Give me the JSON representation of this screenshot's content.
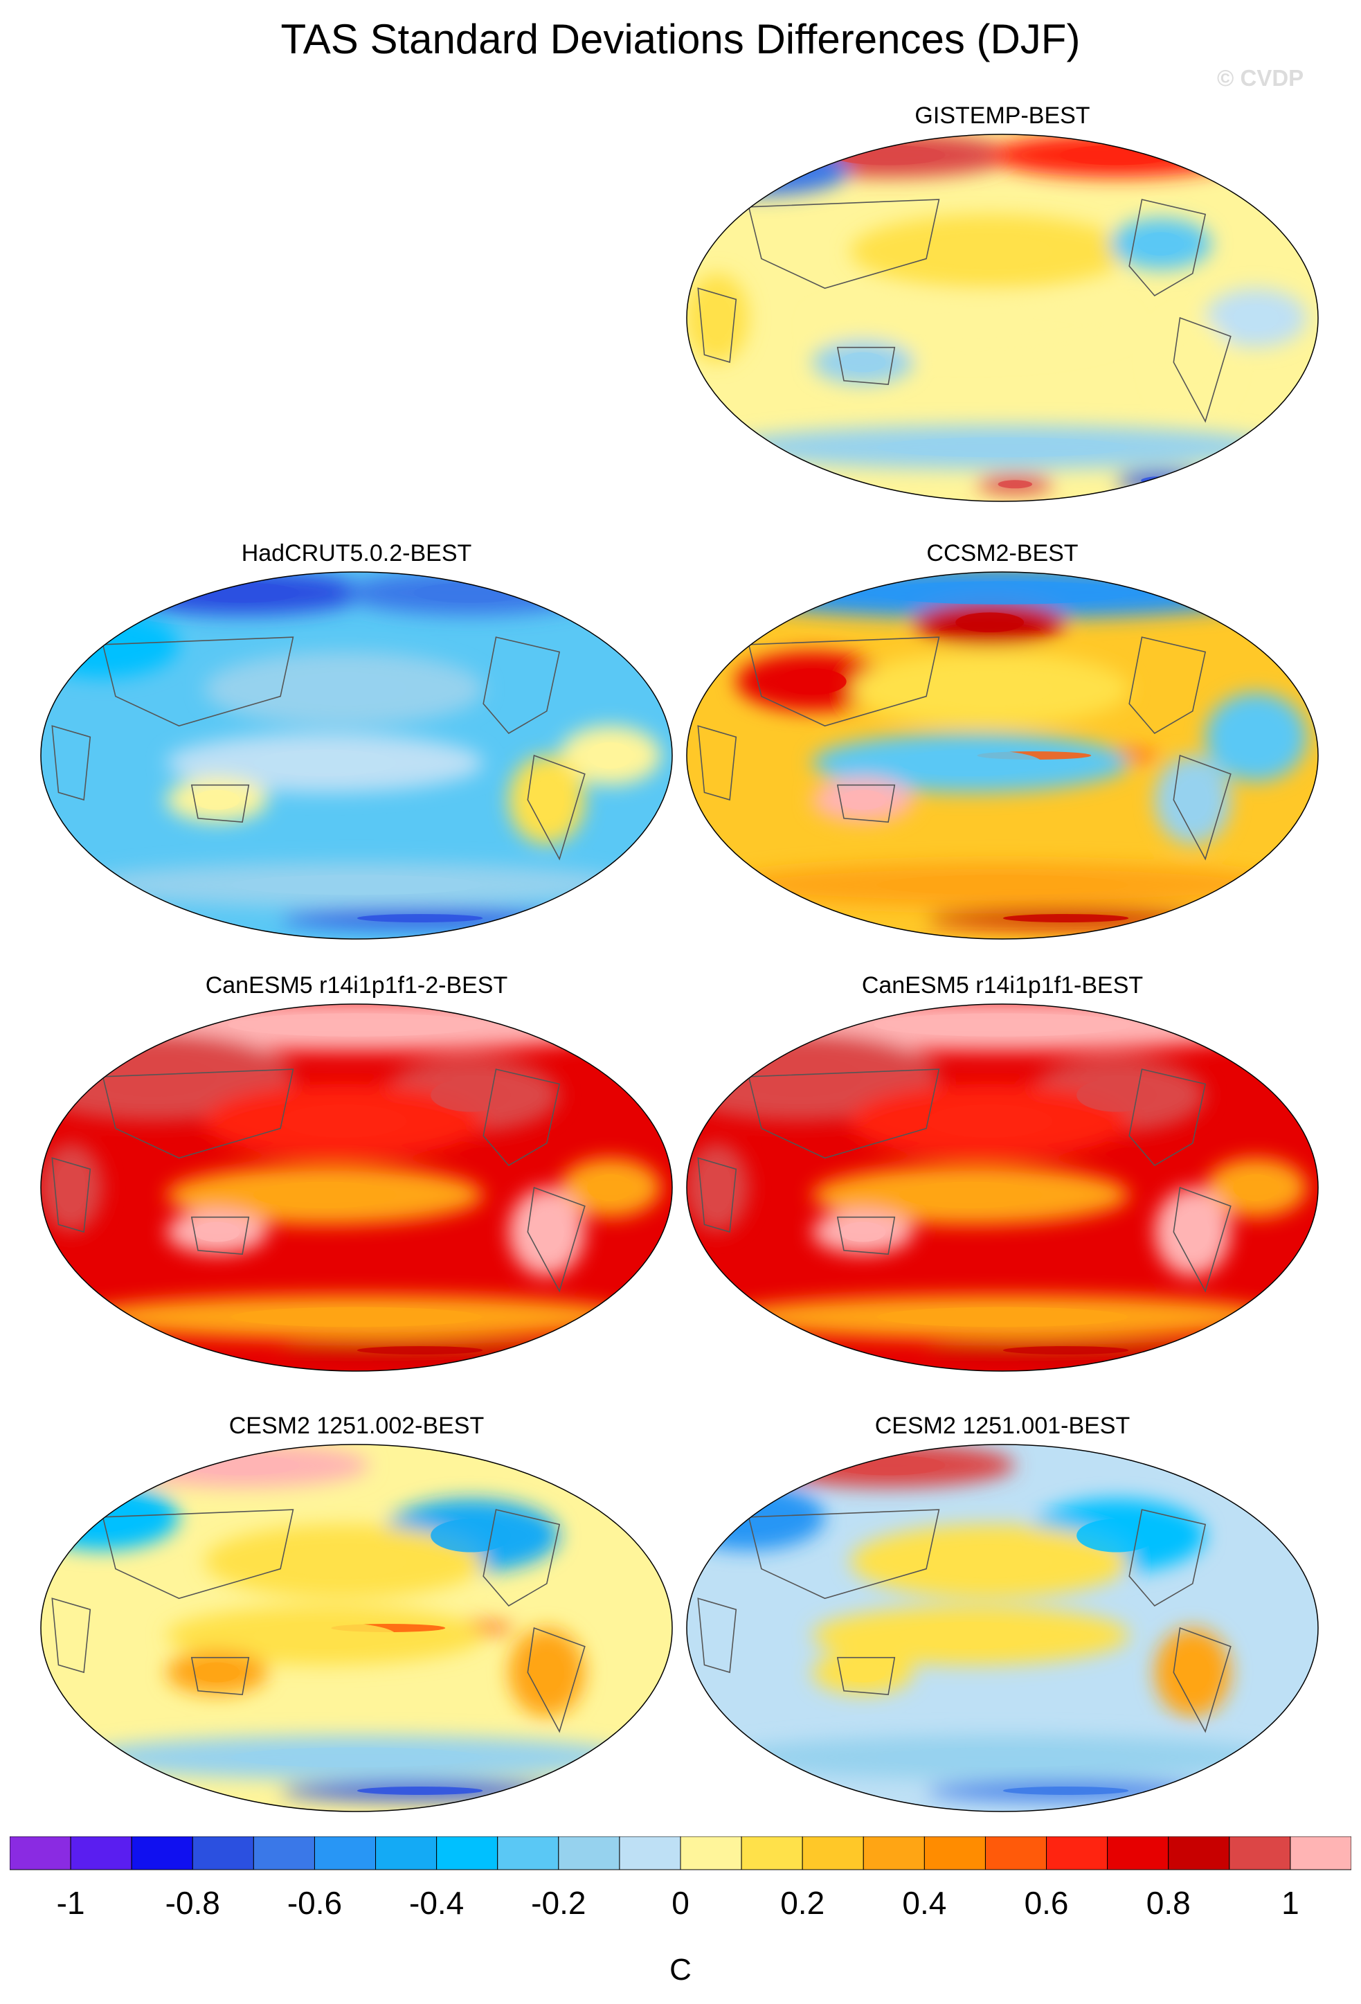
{
  "title": "TAS Standard Deviations Differences (DJF)",
  "watermark": "© CVDP",
  "colors": {
    "palette": [
      "#8a2be2",
      "#5a1ef0",
      "#1010f0",
      "#2b50e0",
      "#3a78e8",
      "#2896f5",
      "#14aaf5",
      "#00c0ff",
      "#5ac8f5",
      "#96d2ee",
      "#bee0f5",
      "#fff59a",
      "#ffe14a",
      "#ffc828",
      "#ffa514",
      "#ff8c00",
      "#ff5a0a",
      "#ff2410",
      "#e60000",
      "#c80000",
      "#dc4646",
      "#ffb4b4"
    ],
    "land_outline": "#555555"
  },
  "chart_data": [
    {
      "type": "heatmap",
      "title": "GISTEMP-BEST",
      "projection": "global equal-area (Winkel/Robinson-like), Pacific-centered",
      "season": "DJF",
      "units": "C",
      "value_range": [
        -1.0,
        1.0
      ],
      "regional_values": [
        {
          "region": "Arctic Siberia",
          "value": 0.9
        },
        {
          "region": "Arctic North America",
          "value": 0.6
        },
        {
          "region": "Scandinavia/Europe high latitudes",
          "value": -0.7
        },
        {
          "region": "North Pacific",
          "value": 0.1
        },
        {
          "region": "Eastern North America",
          "value": -0.3
        },
        {
          "region": "Tropical Pacific",
          "value": 0.05
        },
        {
          "region": "Tropical Atlantic",
          "value": -0.1
        },
        {
          "region": "Australia",
          "value": -0.2
        },
        {
          "region": "Africa",
          "value": 0.1
        },
        {
          "region": "South America",
          "value": 0.05
        },
        {
          "region": "Southern Ocean",
          "value": -0.15
        },
        {
          "region": "Antarctica Ross sector",
          "value": 0.9
        },
        {
          "region": "Antarctica Weddell sector",
          "value": -0.8
        }
      ]
    },
    {
      "type": "heatmap",
      "title": "HadCRUT5.0.2-BEST",
      "projection": "global equal-area (Winkel/Robinson-like), Pacific-centered",
      "season": "DJF",
      "units": "C",
      "value_range": [
        -1.0,
        1.0
      ],
      "regional_values": [
        {
          "region": "Arctic Siberia",
          "value": -0.8
        },
        {
          "region": "Arctic North America",
          "value": -0.7
        },
        {
          "region": "Europe",
          "value": -0.4
        },
        {
          "region": "North Pacific",
          "value": -0.2
        },
        {
          "region": "Tropical Pacific",
          "value": -0.1
        },
        {
          "region": "Tropical Atlantic",
          "value": 0.05
        },
        {
          "region": "Australia",
          "value": 0.05
        },
        {
          "region": "South America",
          "value": 0.1
        },
        {
          "region": "Southern Ocean",
          "value": -0.15
        },
        {
          "region": "Antarctica coast",
          "value": -0.8
        }
      ]
    },
    {
      "type": "heatmap",
      "title": "CCSM2-BEST",
      "projection": "global equal-area (Winkel/Robinson-like), Pacific-centered",
      "season": "DJF",
      "units": "C",
      "value_range": [
        -1.0,
        1.0
      ],
      "regional_values": [
        {
          "region": "Arctic",
          "value": -0.6
        },
        {
          "region": "Alaska/Bering",
          "value": 0.8
        },
        {
          "region": "East Asia",
          "value": 0.7
        },
        {
          "region": "North Pacific",
          "value": 0.1
        },
        {
          "region": "Equatorial Pacific cold tongue",
          "value": 0.5
        },
        {
          "region": "Tropical Pacific",
          "value": -0.3
        },
        {
          "region": "Australia",
          "value": 1.0
        },
        {
          "region": "Atlantic",
          "value": -0.3
        },
        {
          "region": "South America",
          "value": -0.2
        },
        {
          "region": "Southern Ocean",
          "value": 0.3
        },
        {
          "region": "Antarctica coast",
          "value": 0.8
        }
      ]
    },
    {
      "type": "heatmap",
      "title": "CanESM5 r14i1p1f1-2-BEST",
      "projection": "global equal-area (Winkel/Robinson-like), Pacific-centered",
      "season": "DJF",
      "units": "C",
      "value_range": [
        -1.0,
        1.0
      ],
      "regional_values": [
        {
          "region": "Arctic",
          "value": 1.0
        },
        {
          "region": "Eurasia",
          "value": 0.9
        },
        {
          "region": "North America",
          "value": 0.9
        },
        {
          "region": "North Pacific",
          "value": 0.6
        },
        {
          "region": "Tropical Pacific",
          "value": 0.4
        },
        {
          "region": "Tropical Atlantic",
          "value": 0.3
        },
        {
          "region": "Australia",
          "value": 1.0
        },
        {
          "region": "South America",
          "value": 1.0
        },
        {
          "region": "Africa",
          "value": 0.9
        },
        {
          "region": "Southern Ocean",
          "value": 0.3
        },
        {
          "region": "Antarctica coast",
          "value": 0.8
        }
      ]
    },
    {
      "type": "heatmap",
      "title": "CanESM5 r14i1p1f1-BEST",
      "projection": "global equal-area (Winkel/Robinson-like), Pacific-centered",
      "season": "DJF",
      "units": "C",
      "value_range": [
        -1.0,
        1.0
      ],
      "regional_values": [
        {
          "region": "Arctic",
          "value": 1.0
        },
        {
          "region": "Eurasia",
          "value": 0.9
        },
        {
          "region": "North America",
          "value": 0.9
        },
        {
          "region": "North Pacific",
          "value": 0.6
        },
        {
          "region": "Tropical Pacific",
          "value": 0.4
        },
        {
          "region": "Tropical Atlantic",
          "value": 0.3
        },
        {
          "region": "Australia",
          "value": 1.0
        },
        {
          "region": "South America",
          "value": 1.0
        },
        {
          "region": "Africa",
          "value": 0.9
        },
        {
          "region": "Southern Ocean",
          "value": 0.3
        },
        {
          "region": "Antarctica coast",
          "value": 0.8
        }
      ]
    },
    {
      "type": "heatmap",
      "title": "CESM2 1251.002-BEST",
      "projection": "global equal-area (Winkel/Robinson-like), Pacific-centered",
      "season": "DJF",
      "units": "C",
      "value_range": [
        -1.0,
        1.0
      ],
      "regional_values": [
        {
          "region": "Arctic Siberia",
          "value": 1.0
        },
        {
          "region": "Europe",
          "value": -0.4
        },
        {
          "region": "North America",
          "value": -0.5
        },
        {
          "region": "North Pacific",
          "value": 0.2
        },
        {
          "region": "Equatorial Pacific cold tongue",
          "value": 0.5
        },
        {
          "region": "Tropical Pacific",
          "value": 0.1
        },
        {
          "region": "Australia",
          "value": 0.3
        },
        {
          "region": "South America",
          "value": 0.4
        },
        {
          "region": "Southern Ocean",
          "value": -0.2
        },
        {
          "region": "Antarctica coast",
          "value": -0.8
        }
      ]
    },
    {
      "type": "heatmap",
      "title": "CESM2 1251.001-BEST",
      "projection": "global equal-area (Winkel/Robinson-like), Pacific-centered",
      "season": "DJF",
      "units": "C",
      "value_range": [
        -1.0,
        1.0
      ],
      "regional_values": [
        {
          "region": "Arctic Siberia",
          "value": 0.9
        },
        {
          "region": "Europe",
          "value": -0.6
        },
        {
          "region": "North America",
          "value": -0.4
        },
        {
          "region": "North Pacific",
          "value": 0.2
        },
        {
          "region": "Tropical Pacific",
          "value": 0.1
        },
        {
          "region": "Australia",
          "value": 0.2
        },
        {
          "region": "South America",
          "value": 0.4
        },
        {
          "region": "Southern Ocean",
          "value": -0.15
        },
        {
          "region": "Antarctica coast",
          "value": -0.7
        }
      ]
    }
  ],
  "colorbar": {
    "ticks": [
      "-1",
      "-0.8",
      "-0.6",
      "-0.4",
      "-0.2",
      "0",
      "0.2",
      "0.4",
      "0.6",
      "0.8",
      "1"
    ],
    "tick_values": [
      -1,
      -0.8,
      -0.6,
      -0.4,
      -0.2,
      0,
      0.2,
      0.4,
      0.6,
      0.8,
      1
    ],
    "label": "C",
    "range": [
      -1.1,
      1.1
    ]
  }
}
